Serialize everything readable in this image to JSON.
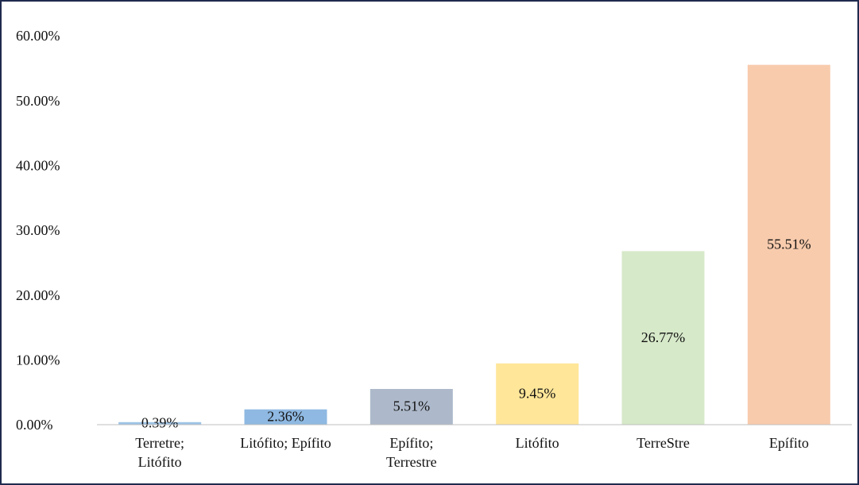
{
  "chart_data": {
    "type": "bar",
    "categories": [
      "Terretre;\nLitófito",
      "Litófito; Epífito",
      "Epífito;\nTerrestre",
      "Litófito",
      "TerreStre",
      "Epífito"
    ],
    "values": [
      0.39,
      2.36,
      5.51,
      9.45,
      26.77,
      55.51
    ],
    "value_labels": [
      "0.39%",
      "2.36%",
      "5.51%",
      "9.45%",
      "26.77%",
      "55.51%"
    ],
    "colors": [
      "#9dc3e6",
      "#8fb9e2",
      "#adb9ca",
      "#ffe699",
      "#d6e9c9",
      "#f8cbad"
    ],
    "ylim": [
      0,
      60
    ],
    "yticks": [
      {
        "value": 0,
        "label": "0.00%"
      },
      {
        "value": 10,
        "label": "10.00%"
      },
      {
        "value": 20,
        "label": "20.00%"
      },
      {
        "value": 30,
        "label": "30.00%"
      },
      {
        "value": 40,
        "label": "40.00%"
      },
      {
        "value": 50,
        "label": "50.00%"
      },
      {
        "value": 60,
        "label": "60.00%"
      }
    ],
    "grid": false
  }
}
